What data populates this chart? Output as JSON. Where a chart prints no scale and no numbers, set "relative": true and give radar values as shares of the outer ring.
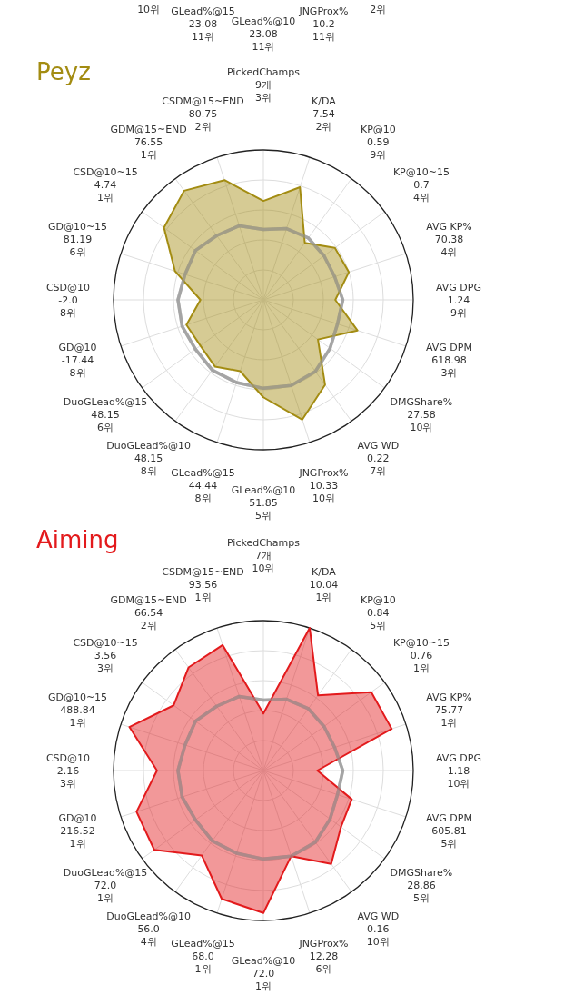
{
  "chart_data": [
    {
      "type": "other",
      "annotations": [
        "10위",
        "GLead%@15\n23.08\n11위",
        "GLead%@10\n23.08\n11위",
        "JNGProx%\n10.2\n11위",
        "2위"
      ]
    },
    {
      "type": "radar",
      "title": "Peyz",
      "relative": true,
      "categories": [
        "PickedChamps\n9개\n3위",
        "K/DA\n7.54\n2위",
        "KP@10\n0.59\n9위",
        "KP@10~15\n0.7\n4위",
        "AVG KP%\n70.38\n4위",
        "AVG DPG\n1.24\n9위",
        "AVG DPM\n618.98\n3위",
        "DMGShare%\n27.58\n10위",
        "AVG WD\n0.22\n7위",
        "JNGProx%\n10.33\n10위",
        "GLead%@10\n51.85\n5위",
        "GLead%@15\n44.44\n8위",
        "DuoGLead%@10\n48.15\n8위",
        "DuoGLead%@15\n48.15\n6위",
        "GD@10\n-17.44\n8위",
        "CSD@10\n-2.0\n8위",
        "GD@10~15\n81.19\n6위",
        "CSD@10~15\n4.74\n1위",
        "GDM@15~END\n76.55\n1위",
        "CSDM@15~END\n80.75\n2위"
      ],
      "series": [
        {
          "color": "#a38c12",
          "values": [
            0.66,
            0.79,
            0.47,
            0.59,
            0.6,
            0.48,
            0.66,
            0.45,
            0.7,
            0.84,
            0.65,
            0.5,
            0.55,
            0.52,
            0.54,
            0.42,
            0.62,
            0.82,
            0.9,
            0.84
          ]
        },
        {
          "color": "#999999",
          "values": [
            0.47,
            0.5,
            0.51,
            0.5,
            0.5,
            0.53,
            0.52,
            0.55,
            0.59,
            0.6,
            0.59,
            0.58,
            0.58,
            0.56,
            0.57,
            0.57,
            0.55,
            0.56,
            0.53,
            0.52
          ]
        }
      ]
    },
    {
      "type": "radar",
      "title": "Aiming",
      "relative": true,
      "categories": [
        "PickedChamps\n7개\n10위",
        "K/DA\n10.04\n1위",
        "KP@10\n0.84\n5위",
        "KP@10~15\n0.76\n1위",
        "AVG KP%\n75.77\n1위",
        "AVG DPG\n1.18\n10위",
        "AVG DPM\n605.81\n5위",
        "DMGShare%\n28.86\n5위",
        "AVG WD\n0.16\n10위",
        "JNGProx%\n12.28\n6위",
        "GLead%@10\n72.0\n1위",
        "GLead%@15\n68.0\n1위",
        "DuoGLead%@10\n56.0\n4위",
        "DuoGLead%@15\n72.0\n1위",
        "GD@10\n216.52\n1위",
        "CSD@10\n2.16\n3위",
        "GD@10~15\n488.84\n1위",
        "CSD@10~15\n3.56\n3위",
        "GDM@15~END\n66.54\n2위",
        "CSDM@15~END\n93.56\n1위"
      ],
      "series": [
        {
          "color": "#e31a1c",
          "values": [
            0.38,
            1.0,
            0.62,
            0.89,
            0.9,
            0.36,
            0.62,
            0.64,
            0.77,
            0.6,
            0.95,
            0.9,
            0.7,
            0.9,
            0.89,
            0.71,
            0.94,
            0.74,
            0.85,
            0.88
          ]
        },
        {
          "color": "#999999",
          "values": [
            0.47,
            0.5,
            0.51,
            0.5,
            0.5,
            0.53,
            0.52,
            0.55,
            0.59,
            0.6,
            0.59,
            0.58,
            0.58,
            0.56,
            0.57,
            0.57,
            0.55,
            0.56,
            0.53,
            0.52
          ]
        }
      ]
    }
  ]
}
